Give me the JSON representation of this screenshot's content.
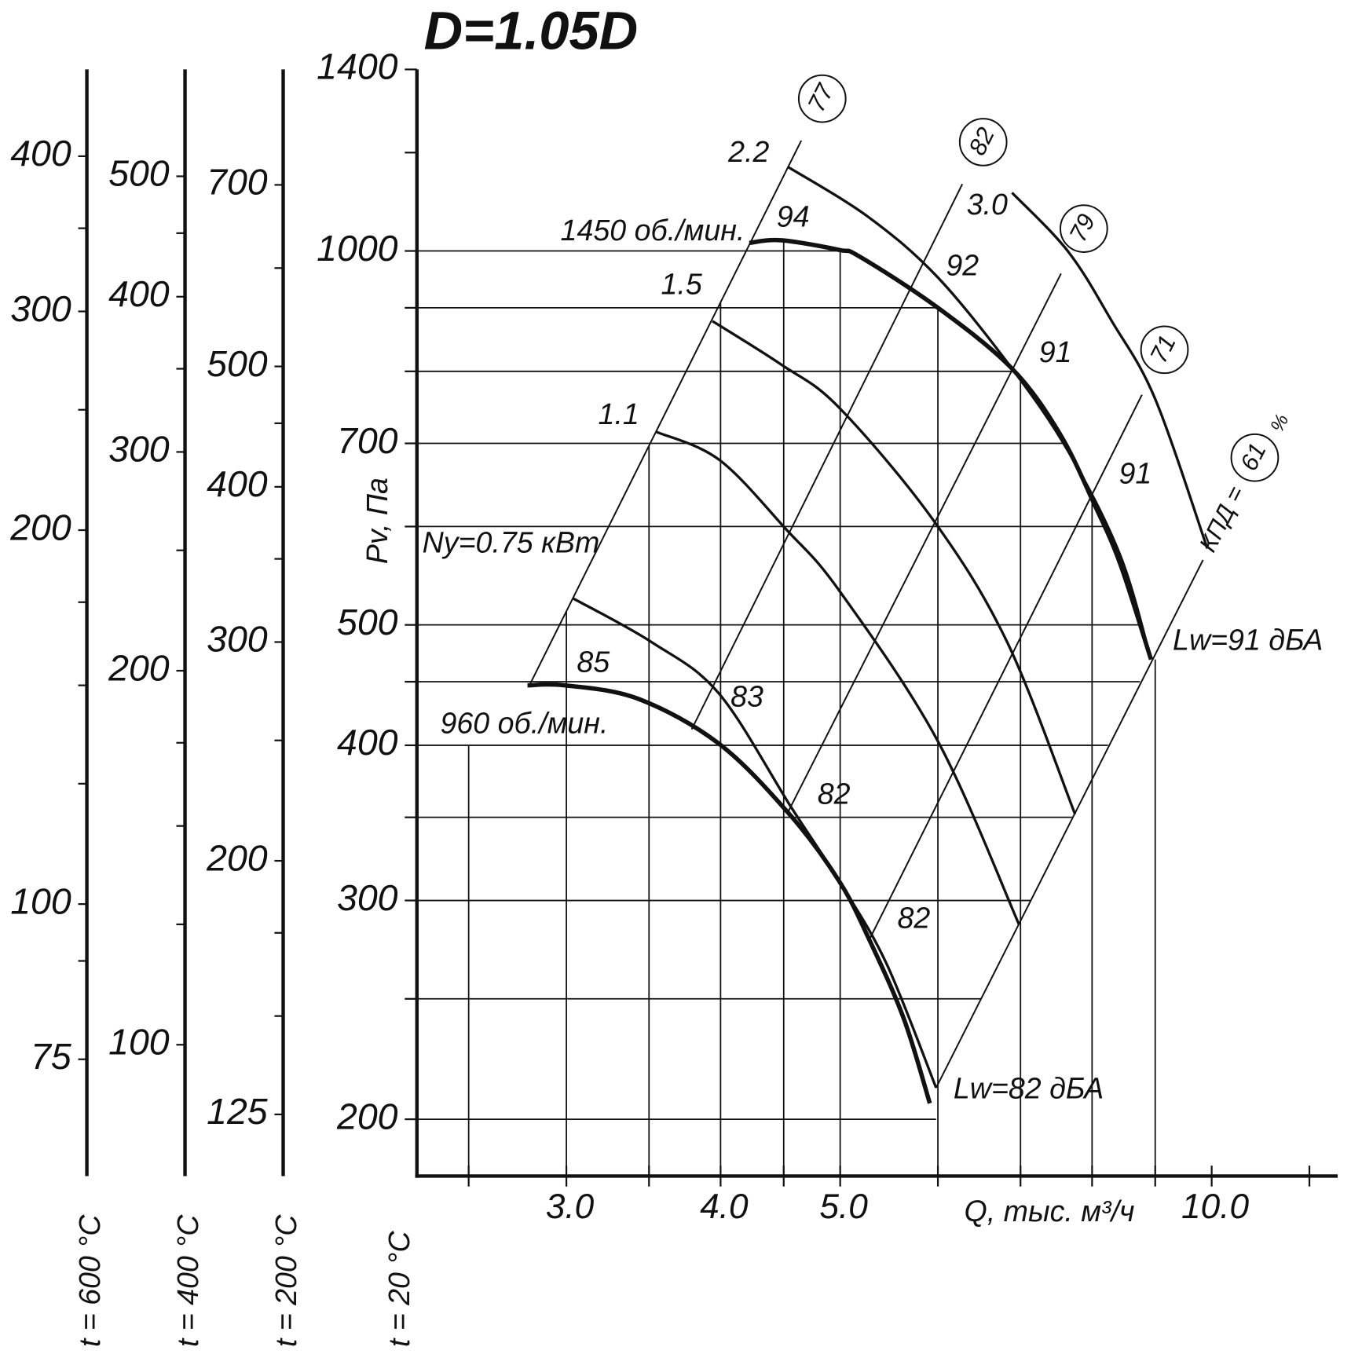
{
  "chart_data": {
    "type": "fan_performance",
    "title": "D=1.05D",
    "x_label": "Q, тыс. м³/ч",
    "y_label": "Pv, Па",
    "log_x": true,
    "log_y": true,
    "grid": true,
    "xlim": [
      2.27,
      12.65
    ],
    "ylim": [
      180,
      1400
    ],
    "xticks": [
      {
        "value": 3,
        "label": "3.0"
      },
      {
        "value": 4,
        "label": "4.0"
      },
      {
        "value": 5,
        "label": "5.0"
      },
      {
        "value": 10,
        "label": "10.0"
      }
    ],
    "xminor_ticks": [
      2.5,
      3.5,
      4.5,
      6,
      7,
      8,
      9,
      12
    ],
    "yticks": [
      200,
      300,
      400,
      500,
      700,
      1000,
      1400
    ],
    "yminor_ticks": [
      250,
      350,
      450,
      600,
      800,
      900,
      1200
    ],
    "temperature_axis_label": "t = 20 °C",
    "temperature_scales": [
      {
        "label": "t = 600 °C",
        "ylim": [
          60.4,
          469.8
        ],
        "yticks": [
          75,
          100,
          200,
          300,
          400
        ],
        "minor_ticks": [
          90,
          125,
          150,
          175,
          250,
          350
        ]
      },
      {
        "label": "t = 400 °C",
        "ylim": [
          78.4,
          609.5
        ],
        "yticks": [
          100,
          200,
          300,
          400,
          500
        ],
        "minor_ticks": [
          125,
          150,
          175,
          250,
          350,
          450
        ]
      },
      {
        "label": "t = 200 °C",
        "ylim": [
          111.5,
          867
        ],
        "yticks": [
          125,
          200,
          300,
          400,
          500,
          700
        ],
        "minor_ticks": [
          150,
          175,
          250,
          350,
          450,
          600
        ]
      }
    ],
    "series": [
      {
        "name": "1450 об./мин.",
        "x": [
          4.22,
          4.48,
          4.99,
          5.19,
          6.0,
          6.89,
          7.53,
          8.03,
          8.43,
          8.93
        ],
        "values": [
          1015,
          1020,
          1002,
          989,
          900,
          804,
          713,
          626,
          560,
          469
        ]
      },
      {
        "name": "960 об./мин.",
        "x": [
          2.79,
          2.99,
          3.43,
          3.99,
          4.56,
          4.99,
          5.27,
          5.63,
          5.91
        ],
        "values": [
          447,
          447,
          436,
          401,
          351,
          311,
          280,
          241,
          206
        ]
      }
    ],
    "power_curves": [
      {
        "name": "Ny=0.75 кВт",
        "x": [
          3.04,
          3.52,
          3.99,
          4.56,
          4.99,
          5.45,
          5.98
        ],
        "values": [
          525,
          484,
          440,
          357,
          311,
          267,
          212
        ]
      },
      {
        "name": "1.1",
        "x": [
          3.55,
          3.99,
          4.52,
          4.99,
          6.0,
          6.98
        ],
        "values": [
          715,
          679,
          597,
          533,
          403,
          287
        ]
      },
      {
        "name": "1.5",
        "x": [
          3.94,
          4.48,
          4.99,
          5.95,
          6.83,
          7.75
        ],
        "values": [
          878,
          810,
          748,
          607,
          484,
          352
        ]
      },
      {
        "name": "2.2",
        "x": [
          4.54,
          5.27,
          6.0,
          6.89,
          7.65,
          8.43,
          8.93
        ],
        "values": [
          1168,
          1065,
          952,
          804,
          690,
          569,
          469
        ]
      },
      {
        "name": "3.0",
        "x": [
          6.89,
          7.65,
          8.3,
          9.0,
          9.92
        ],
        "values": [
          1114,
          999,
          878,
          760,
          576
        ]
      }
    ],
    "efficiency_lines": [
      {
        "name": "77",
        "x": [
          2.8,
          4.65
        ],
        "values": [
          447,
          1227
        ]
      },
      {
        "name": "82",
        "x": [
          3.79,
          6.28
        ],
        "values": [
          412,
          1132
        ]
      },
      {
        "name": "79",
        "x": [
          4.54,
          7.55
        ],
        "values": [
          354,
          959
        ]
      },
      {
        "name": "71",
        "x": [
          5.27,
          8.78
        ],
        "values": [
          278,
          766
        ]
      },
      {
        "name": "61",
        "x": [
          5.98,
          9.84
        ],
        "values": [
          212,
          564
        ]
      }
    ],
    "kpd_prefix": "КПД =",
    "kpd_unit": "%",
    "noise_level_labels": [
      "Lw=82 дБА",
      "Lw=91 дБА"
    ],
    "noise_annotations": [
      "85",
      "83",
      "82",
      "82",
      "94",
      "92",
      "91",
      "91"
    ]
  }
}
